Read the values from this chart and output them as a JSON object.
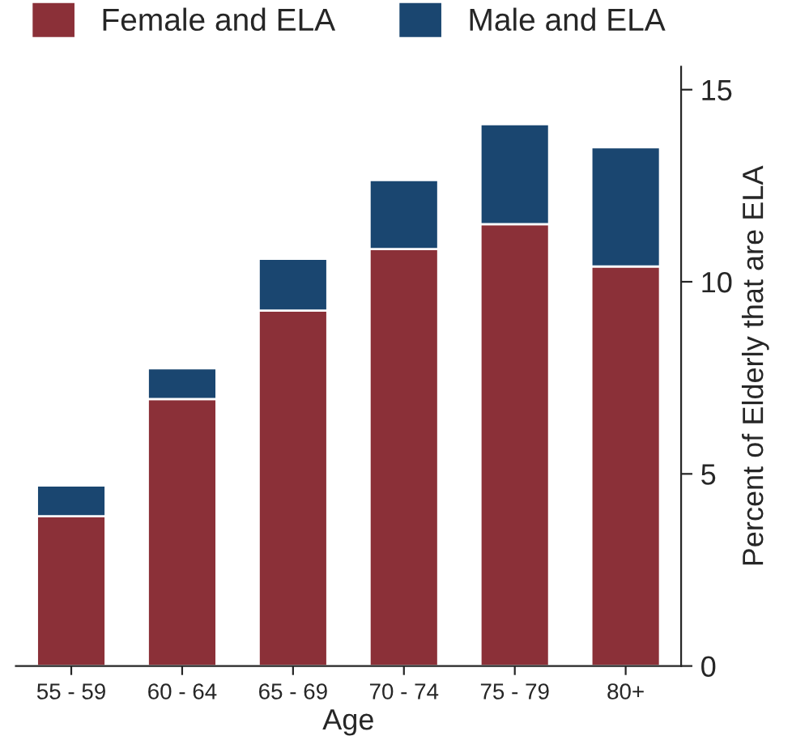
{
  "chart_data": {
    "type": "bar",
    "stacked": true,
    "xlabel": "Age",
    "ylabel": "Percent of Elderly that are ELA",
    "categories": [
      "55 - 59",
      "60 - 64",
      "65 - 69",
      "70 - 74",
      "75 - 79",
      "80+"
    ],
    "series": [
      {
        "name": "Female and ELA",
        "color": "#8b3038",
        "values": [
          3.9,
          6.95,
          9.25,
          10.85,
          11.5,
          10.4
        ]
      },
      {
        "name": "Male and ELA",
        "color": "#1a4670",
        "values": [
          0.8,
          0.8,
          1.35,
          1.8,
          2.6,
          3.1
        ]
      }
    ],
    "ylim": [
      0,
      15.6
    ],
    "yticks": [
      0,
      5,
      10,
      15
    ],
    "legend": "top",
    "grid": false
  }
}
